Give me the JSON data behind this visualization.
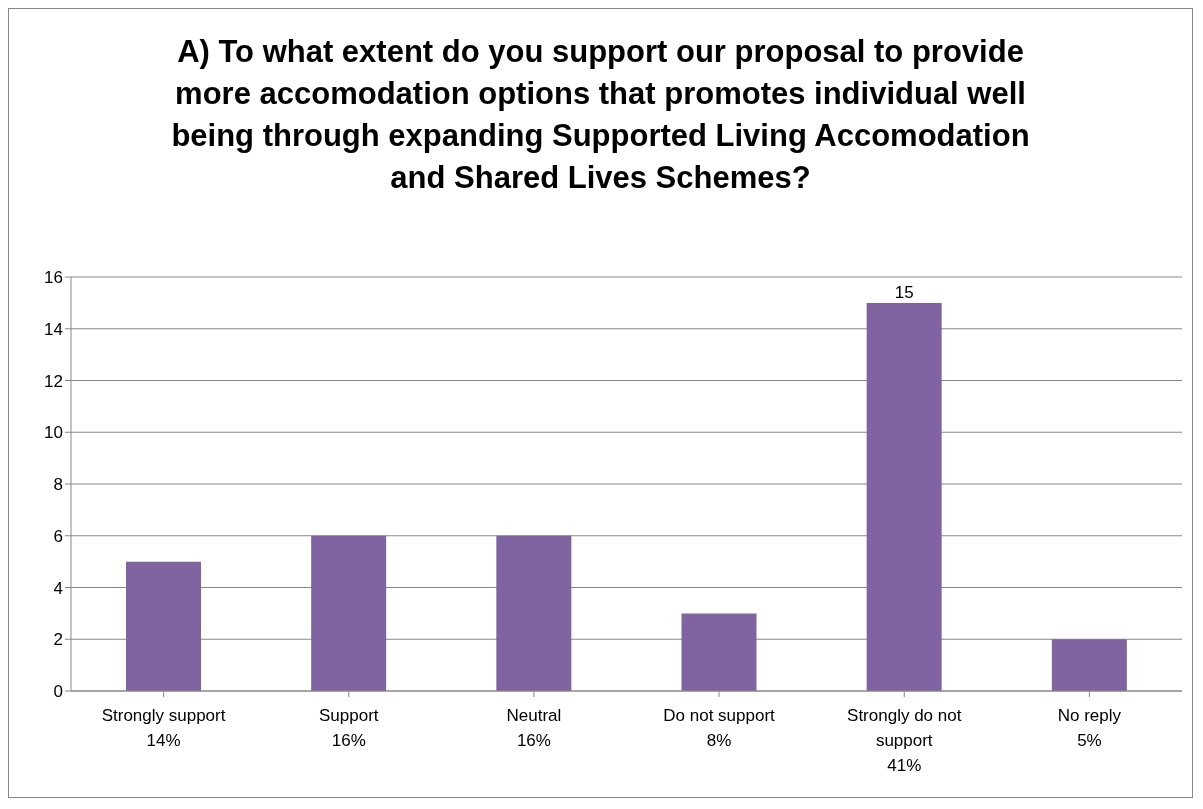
{
  "chart_data": {
    "type": "bar",
    "title": "A)  To what extent do you support our proposal to provide more accomodation options that promotes individual well being through expanding Supported Living Accomodation and Shared Lives Schemes?",
    "categories": [
      "Strongly support\n14%",
      "Support\n16%",
      "Neutral\n16%",
      "Do not support\n8%",
      "Strongly do not\nsupport\n41%",
      "No reply\n5%"
    ],
    "values": [
      5,
      6,
      6,
      3,
      15,
      2
    ],
    "value_labels": [
      null,
      null,
      null,
      null,
      "15",
      null
    ],
    "color": "#8064a2",
    "ylim": [
      0,
      16
    ],
    "yticks": [
      0,
      2,
      4,
      6,
      8,
      10,
      12,
      14,
      16
    ],
    "grid": "y"
  }
}
